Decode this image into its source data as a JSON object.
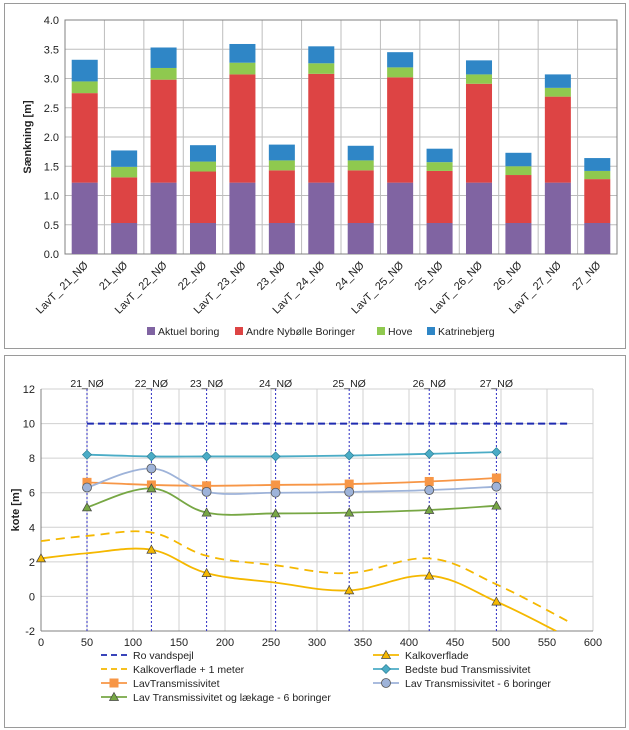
{
  "chart_data": [
    {
      "type": "bar",
      "stacked": true,
      "categories": [
        "LavT_ 21_NØ",
        "21_NØ",
        "LavT_ 22_NØ",
        "22_NØ",
        "LavT_ 23_NØ",
        "23_NØ",
        "LavT_ 24_NØ",
        "24_NØ",
        "LavT_ 25_NØ",
        "25_NØ",
        "LavT_ 26_NØ",
        "26_NØ",
        "LavT_ 27_NØ",
        "27_NØ"
      ],
      "series": [
        {
          "name": "Aktuel boring",
          "color": "#8064a2",
          "values": [
            1.22,
            0.53,
            1.22,
            0.53,
            1.22,
            0.53,
            1.22,
            0.53,
            1.22,
            0.53,
            1.22,
            0.53,
            1.22,
            0.53
          ]
        },
        {
          "name": "Andre Nybølle Boringer",
          "color": "#dd4444",
          "values": [
            1.53,
            0.78,
            1.76,
            0.88,
            1.85,
            0.9,
            1.86,
            0.9,
            1.8,
            0.89,
            1.69,
            0.82,
            1.47,
            0.75
          ]
        },
        {
          "name": "Hove",
          "color": "#8fc94f",
          "values": [
            0.2,
            0.18,
            0.2,
            0.17,
            0.2,
            0.17,
            0.18,
            0.17,
            0.17,
            0.15,
            0.16,
            0.15,
            0.15,
            0.14
          ]
        },
        {
          "name": "Katrinebjerg",
          "color": "#2f86c6",
          "values": [
            0.37,
            0.28,
            0.35,
            0.28,
            0.32,
            0.27,
            0.29,
            0.25,
            0.26,
            0.23,
            0.24,
            0.23,
            0.23,
            0.22
          ]
        }
      ],
      "ylabel": "Sænkning [m]",
      "ylim": [
        0,
        4.0
      ],
      "yticks": [
        "0.0",
        "0.5",
        "1.0",
        "1.5",
        "2.0",
        "2.5",
        "3.0",
        "3.5",
        "4.0"
      ],
      "grid": true,
      "legend": "bottom"
    },
    {
      "type": "line",
      "ylabel": "kote [m]",
      "xlim": [
        0,
        600
      ],
      "ylim": [
        -2,
        12
      ],
      "xticks": [
        "0",
        "50",
        "100",
        "150",
        "200",
        "250",
        "300",
        "350",
        "400",
        "450",
        "500",
        "550",
        "600"
      ],
      "yticks": [
        "-2",
        "0",
        "2",
        "4",
        "6",
        "8",
        "10",
        "12"
      ],
      "grid": true,
      "legend": "bottom",
      "verticals": [
        {
          "x": 50,
          "label": "21_NØ"
        },
        {
          "x": 120,
          "label": "22_NØ"
        },
        {
          "x": 180,
          "label": "23_NØ"
        },
        {
          "x": 255,
          "label": "24_NØ"
        },
        {
          "x": 335,
          "label": "25_NØ"
        },
        {
          "x": 422,
          "label": "26_NØ"
        },
        {
          "x": 495,
          "label": "27_NØ"
        }
      ],
      "series": [
        {
          "name": "Ro vandspejl",
          "color": "#1f2bb0",
          "style": "dashed",
          "marker": "none",
          "x": [
            50,
            575
          ],
          "y": [
            10,
            10
          ]
        },
        {
          "name": "Kalkoverflade",
          "color": "#f5b800",
          "style": "solid",
          "marker": "triangle",
          "x": [
            0,
            50,
            120,
            180,
            255,
            335,
            422,
            495,
            560
          ],
          "y": [
            2.2,
            2.5,
            2.7,
            1.35,
            0.8,
            0.35,
            1.2,
            -0.3,
            -2.0
          ],
          "marker_x": [
            0,
            120,
            180,
            335,
            422,
            495
          ]
        },
        {
          "name": "Kalkoverflade + 1 meter",
          "color": "#f5b800",
          "style": "dashed",
          "marker": "none",
          "x": [
            0,
            50,
            120,
            180,
            255,
            335,
            422,
            495,
            575
          ],
          "y": [
            3.2,
            3.5,
            3.7,
            2.35,
            1.8,
            1.35,
            2.2,
            0.7,
            -1.5
          ]
        },
        {
          "name": "Bedste bud Transmissivitet",
          "color": "#4bacc6",
          "style": "solid",
          "marker": "diamond",
          "x": [
            50,
            120,
            180,
            255,
            335,
            422,
            495
          ],
          "y": [
            8.2,
            8.1,
            8.1,
            8.1,
            8.15,
            8.25,
            8.35
          ]
        },
        {
          "name": "LavTransmissivitet",
          "color": "#f79646",
          "style": "solid",
          "marker": "square",
          "x": [
            50,
            120,
            180,
            255,
            335,
            422,
            495
          ],
          "y": [
            6.6,
            6.45,
            6.4,
            6.45,
            6.5,
            6.65,
            6.85
          ]
        },
        {
          "name": "Lav Transmissivitet - 6 boringer",
          "color": "#9eb3d9",
          "style": "solid",
          "marker": "circle",
          "x": [
            50,
            120,
            180,
            255,
            335,
            422,
            495
          ],
          "y": [
            6.3,
            7.4,
            6.05,
            6.0,
            6.05,
            6.15,
            6.35
          ]
        },
        {
          "name": "Lav Transmissivitet og lækage - 6 boringer",
          "color": "#77a744",
          "style": "solid",
          "marker": "triangle",
          "x": [
            50,
            120,
            180,
            255,
            335,
            422,
            495
          ],
          "y": [
            5.15,
            6.25,
            4.85,
            4.8,
            4.85,
            5.0,
            5.25
          ]
        }
      ]
    }
  ]
}
